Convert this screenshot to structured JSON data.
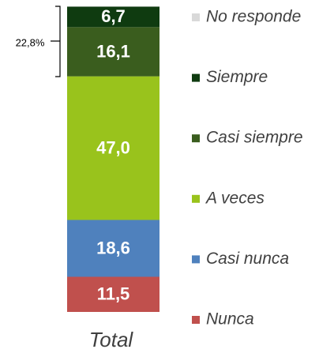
{
  "chart_data": {
    "type": "stacked_bar",
    "categories": [
      "Total"
    ],
    "series": [
      {
        "name": "Nunca",
        "color": "#c0504d",
        "values": [
          11.5
        ],
        "value_labels": [
          "11,5"
        ]
      },
      {
        "name": "Casi nunca",
        "color": "#4f81bd",
        "values": [
          18.6
        ],
        "value_labels": [
          "18,6"
        ]
      },
      {
        "name": "A veces",
        "color": "#99c31c",
        "values": [
          47.0
        ],
        "value_labels": [
          "47,0"
        ]
      },
      {
        "name": "Casi siempre",
        "color": "#3a5d1e",
        "values": [
          16.1
        ],
        "value_labels": [
          "16,1"
        ]
      },
      {
        "name": "Siempre",
        "color": "#0f3b10",
        "values": [
          6.7
        ],
        "value_labels": [
          "6,7"
        ]
      },
      {
        "name": "No responde",
        "color": "#d9d9d9",
        "values": [
          0.1
        ]
      }
    ],
    "annotation": "22,8%"
  }
}
